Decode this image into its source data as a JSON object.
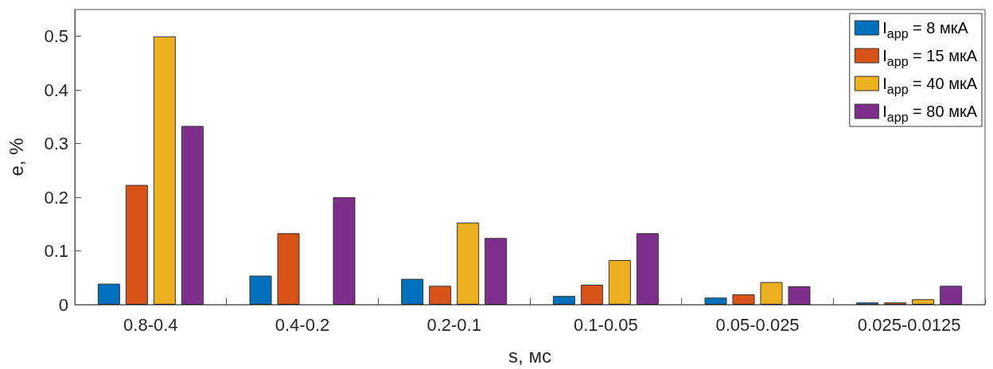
{
  "chart_data": {
    "type": "bar",
    "xlabel": "s, мс",
    "ylabel": "e, %",
    "categories": [
      "0.8-0.4",
      "0.4-0.2",
      "0.2-0.1",
      "0.1-0.05",
      "0.05-0.025",
      "0.025-0.0125"
    ],
    "series": [
      {
        "name": "I$_{app}$ = 8 мкА",
        "color": "#0072bd",
        "values": [
          0.039,
          0.054,
          0.048,
          0.016,
          0.013,
          0.004
        ]
      },
      {
        "name": "I$_{app}$ = 15 мкА",
        "color": "#d95319",
        "values": [
          0.223,
          0.133,
          0.035,
          0.037,
          0.019,
          0.004
        ]
      },
      {
        "name": "I$_{app}$ = 40 мкА",
        "color": "#edb120",
        "values": [
          0.5,
          null,
          0.153,
          0.083,
          0.042,
          0.01
        ]
      },
      {
        "name": "I$_{app}$ = 80 мкА",
        "color": "#7e2f8e",
        "values": [
          0.333,
          0.2,
          0.124,
          0.133,
          0.034,
          0.035
        ]
      }
    ],
    "ylim": [
      0,
      0.55
    ],
    "yticks": [
      0,
      0.1,
      0.2,
      0.3,
      0.4,
      0.5
    ],
    "grid": false,
    "legend": "top right"
  }
}
